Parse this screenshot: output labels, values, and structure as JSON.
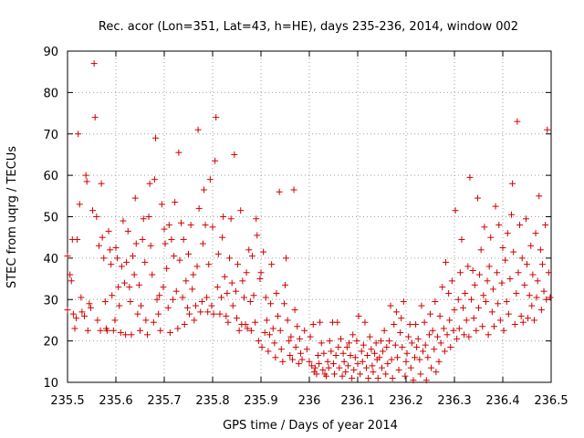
{
  "chart_data": {
    "type": "scatter",
    "title": "Rec. acor (Lon=351, Lat=43, h=HE), days 235-236, 2014, window 002",
    "xlabel": "GPS time / Days of year 2014",
    "ylabel": "STEC from uqrg / TECUs",
    "xlim": [
      235.5,
      236.5
    ],
    "ylim": [
      10,
      90
    ],
    "xticks": [
      "235.5",
      "235.6",
      "235.7",
      "235.8",
      "235.9",
      "236",
      "236.1",
      "236.2",
      "236.3",
      "236.4",
      "236.5"
    ],
    "yticks": [
      "10",
      "20",
      "30",
      "40",
      "50",
      "60",
      "70",
      "80",
      "90"
    ],
    "grid": true,
    "marker": "plus",
    "color": "#d00000",
    "points": [
      [
        235.5,
        40.5
      ],
      [
        235.5,
        27.5
      ],
      [
        235.505,
        36.0
      ],
      [
        235.508,
        34.5
      ],
      [
        235.51,
        44.5
      ],
      [
        235.512,
        26.5
      ],
      [
        235.515,
        23.0
      ],
      [
        235.518,
        25.5
      ],
      [
        235.52,
        44.5
      ],
      [
        235.522,
        70.0
      ],
      [
        235.525,
        53.0
      ],
      [
        235.528,
        30.5
      ],
      [
        235.53,
        27.0
      ],
      [
        235.535,
        26.0
      ],
      [
        235.538,
        60.0
      ],
      [
        235.54,
        58.5
      ],
      [
        235.542,
        22.5
      ],
      [
        235.545,
        29.0
      ],
      [
        235.548,
        28.0
      ],
      [
        235.552,
        51.5
      ],
      [
        235.555,
        87.0
      ],
      [
        235.557,
        74.0
      ],
      [
        235.56,
        50.0
      ],
      [
        235.562,
        25.0
      ],
      [
        235.565,
        43.0
      ],
      [
        235.568,
        22.5
      ],
      [
        235.57,
        58.0
      ],
      [
        235.572,
        45.0
      ],
      [
        235.575,
        40.0
      ],
      [
        235.578,
        29.5
      ],
      [
        235.58,
        23.0
      ],
      [
        235.582,
        22.5
      ],
      [
        235.585,
        46.5
      ],
      [
        235.588,
        42.0
      ],
      [
        235.59,
        38.5
      ],
      [
        235.592,
        31.0
      ],
      [
        235.595,
        22.5
      ],
      [
        235.598,
        25.0
      ],
      [
        235.6,
        42.5
      ],
      [
        235.603,
        40.0
      ],
      [
        235.605,
        33.0
      ],
      [
        235.607,
        28.5
      ],
      [
        235.61,
        22.0
      ],
      [
        235.612,
        38.0
      ],
      [
        235.615,
        49.0
      ],
      [
        235.618,
        34.0
      ],
      [
        235.62,
        21.5
      ],
      [
        235.622,
        39.0
      ],
      [
        235.625,
        46.5
      ],
      [
        235.628,
        33.0
      ],
      [
        235.63,
        29.5
      ],
      [
        235.632,
        21.5
      ],
      [
        235.635,
        40.5
      ],
      [
        235.638,
        36.0
      ],
      [
        235.64,
        54.5
      ],
      [
        235.642,
        43.5
      ],
      [
        235.645,
        26.5
      ],
      [
        235.648,
        33.5
      ],
      [
        235.65,
        22.5
      ],
      [
        235.652,
        28.5
      ],
      [
        235.655,
        44.5
      ],
      [
        235.657,
        49.5
      ],
      [
        235.66,
        39.0
      ],
      [
        235.662,
        25.0
      ],
      [
        235.665,
        21.5
      ],
      [
        235.668,
        50.0
      ],
      [
        235.67,
        58.0
      ],
      [
        235.672,
        43.0
      ],
      [
        235.675,
        36.0
      ],
      [
        235.678,
        24.5
      ],
      [
        235.68,
        59.0
      ],
      [
        235.682,
        69.0
      ],
      [
        235.685,
        30.0
      ],
      [
        235.688,
        26.5
      ],
      [
        235.69,
        31.0
      ],
      [
        235.692,
        22.5
      ],
      [
        235.695,
        53.0
      ],
      [
        235.698,
        33.0
      ],
      [
        235.7,
        47.0
      ],
      [
        235.702,
        43.5
      ],
      [
        235.705,
        37.5
      ],
      [
        235.708,
        28.0
      ],
      [
        235.71,
        48.0
      ],
      [
        235.712,
        22.0
      ],
      [
        235.715,
        44.5
      ],
      [
        235.718,
        30.0
      ],
      [
        235.72,
        40.5
      ],
      [
        235.722,
        53.5
      ],
      [
        235.725,
        32.0
      ],
      [
        235.728,
        23.0
      ],
      [
        235.73,
        65.5
      ],
      [
        235.732,
        39.5
      ],
      [
        235.735,
        48.5
      ],
      [
        235.738,
        30.5
      ],
      [
        235.74,
        44.5
      ],
      [
        235.742,
        24.0
      ],
      [
        235.745,
        34.5
      ],
      [
        235.748,
        28.0
      ],
      [
        235.75,
        41.0
      ],
      [
        235.752,
        26.5
      ],
      [
        235.755,
        48.0
      ],
      [
        235.758,
        32.5
      ],
      [
        235.76,
        36.0
      ],
      [
        235.762,
        25.0
      ],
      [
        235.765,
        28.5
      ],
      [
        235.768,
        38.0
      ],
      [
        235.77,
        71.0
      ],
      [
        235.772,
        52.0
      ],
      [
        235.775,
        27.0
      ],
      [
        235.778,
        29.5
      ],
      [
        235.78,
        43.5
      ],
      [
        235.782,
        56.5
      ],
      [
        235.785,
        48.0
      ],
      [
        235.788,
        30.5
      ],
      [
        235.79,
        27.0
      ],
      [
        235.792,
        38.5
      ],
      [
        235.795,
        59.0
      ],
      [
        235.798,
        28.5
      ],
      [
        235.8,
        47.5
      ],
      [
        235.802,
        26.5
      ],
      [
        235.805,
        63.5
      ],
      [
        235.807,
        74.0
      ],
      [
        235.81,
        33.0
      ],
      [
        235.812,
        41.0
      ],
      [
        235.815,
        26.5
      ],
      [
        235.818,
        30.5
      ],
      [
        235.82,
        45.0
      ],
      [
        235.822,
        50.0
      ],
      [
        235.825,
        35.5
      ],
      [
        235.828,
        26.0
      ],
      [
        235.83,
        31.5
      ],
      [
        235.832,
        24.5
      ],
      [
        235.835,
        40.0
      ],
      [
        235.838,
        49.5
      ],
      [
        235.84,
        34.0
      ],
      [
        235.842,
        28.5
      ],
      [
        235.845,
        65.0
      ],
      [
        235.848,
        32.0
      ],
      [
        235.85,
        25.5
      ],
      [
        235.852,
        38.5
      ],
      [
        235.855,
        22.5
      ],
      [
        235.858,
        51.5
      ],
      [
        235.86,
        24.0
      ],
      [
        235.862,
        34.5
      ],
      [
        235.865,
        30.5
      ],
      [
        235.868,
        24.0
      ],
      [
        235.87,
        36.5
      ],
      [
        235.872,
        23.0
      ],
      [
        235.875,
        42.0
      ],
      [
        235.878,
        29.5
      ],
      [
        235.88,
        22.5
      ],
      [
        235.882,
        40.5
      ],
      [
        235.885,
        31.0
      ],
      [
        235.888,
        24.5
      ],
      [
        235.89,
        49.5
      ],
      [
        235.892,
        45.5
      ],
      [
        235.895,
        20.0
      ],
      [
        235.898,
        35.0
      ],
      [
        235.9,
        36.5
      ],
      [
        235.902,
        18.5
      ],
      [
        235.905,
        41.5
      ],
      [
        235.908,
        22.0
      ],
      [
        235.91,
        30.5
      ],
      [
        235.912,
        25.0
      ],
      [
        235.915,
        17.5
      ],
      [
        235.918,
        21.5
      ],
      [
        235.92,
        29.0
      ],
      [
        235.922,
        38.5
      ],
      [
        235.925,
        23.0
      ],
      [
        235.928,
        19.5
      ],
      [
        235.93,
        16.0
      ],
      [
        235.932,
        31.5
      ],
      [
        235.935,
        26.0
      ],
      [
        235.938,
        56.0
      ],
      [
        235.94,
        22.5
      ],
      [
        235.942,
        18.0
      ],
      [
        235.945,
        15.0
      ],
      [
        235.948,
        29.0
      ],
      [
        235.95,
        33.5
      ],
      [
        235.952,
        40.0
      ],
      [
        235.955,
        25.0
      ],
      [
        235.958,
        20.0
      ],
      [
        235.96,
        16.5
      ],
      [
        235.962,
        21.0
      ],
      [
        235.965,
        15.5
      ],
      [
        235.968,
        56.5
      ],
      [
        235.97,
        27.5
      ],
      [
        235.972,
        18.5
      ],
      [
        235.975,
        23.5
      ],
      [
        235.978,
        14.5
      ],
      [
        235.98,
        20.5
      ],
      [
        235.982,
        17.0
      ],
      [
        235.985,
        15.5
      ],
      [
        235.99,
        22.5
      ],
      [
        235.995,
        18.0
      ],
      [
        236.0,
        15.0
      ],
      [
        236.002,
        21.0
      ],
      [
        236.005,
        14.0
      ],
      [
        236.008,
        24.0
      ],
      [
        236.01,
        12.5
      ],
      [
        236.012,
        13.5
      ],
      [
        236.015,
        12.0
      ],
      [
        236.018,
        16.5
      ],
      [
        236.02,
        14.5
      ],
      [
        236.022,
        24.5
      ],
      [
        236.025,
        19.5
      ],
      [
        236.028,
        13.0
      ],
      [
        236.03,
        17.0
      ],
      [
        236.032,
        12.0
      ],
      [
        236.035,
        11.5
      ],
      [
        236.038,
        15.0
      ],
      [
        236.04,
        13.5
      ],
      [
        236.042,
        20.0
      ],
      [
        236.045,
        17.5
      ],
      [
        236.048,
        24.5
      ],
      [
        236.05,
        14.5
      ],
      [
        236.052,
        12.0
      ],
      [
        236.055,
        16.5
      ],
      [
        236.058,
        24.5
      ],
      [
        236.06,
        18.5
      ],
      [
        236.062,
        13.5
      ],
      [
        236.065,
        20.5
      ],
      [
        236.068,
        11.5
      ],
      [
        236.07,
        17.0
      ],
      [
        236.072,
        15.0
      ],
      [
        236.075,
        12.5
      ],
      [
        236.078,
        18.5
      ],
      [
        236.08,
        14.0
      ],
      [
        236.082,
        19.5
      ],
      [
        236.085,
        16.5
      ],
      [
        236.088,
        11.0
      ],
      [
        236.09,
        21.5
      ],
      [
        236.092,
        13.0
      ],
      [
        236.095,
        16.0
      ],
      [
        236.098,
        20.0
      ],
      [
        236.1,
        14.5
      ],
      [
        236.102,
        26.0
      ],
      [
        236.105,
        12.0
      ],
      [
        236.108,
        17.5
      ],
      [
        236.11,
        15.0
      ],
      [
        236.112,
        19.0
      ],
      [
        236.115,
        24.5
      ],
      [
        236.118,
        13.5
      ],
      [
        236.12,
        16.5
      ],
      [
        236.122,
        11.0
      ],
      [
        236.125,
        21.0
      ],
      [
        236.128,
        18.0
      ],
      [
        236.13,
        14.0
      ],
      [
        236.132,
        12.5
      ],
      [
        236.135,
        17.0
      ],
      [
        236.138,
        19.5
      ],
      [
        236.14,
        15.5
      ],
      [
        236.142,
        11.0
      ],
      [
        236.145,
        16.0
      ],
      [
        236.148,
        20.0
      ],
      [
        236.15,
        13.5
      ],
      [
        236.152,
        17.5
      ],
      [
        236.155,
        22.5
      ],
      [
        236.158,
        12.0
      ],
      [
        236.16,
        18.5
      ],
      [
        236.162,
        14.5
      ],
      [
        236.165,
        20.0
      ],
      [
        236.168,
        28.5
      ],
      [
        236.17,
        15.5
      ],
      [
        236.172,
        11.0
      ],
      [
        236.175,
        24.0
      ],
      [
        236.178,
        19.0
      ],
      [
        236.18,
        27.0
      ],
      [
        236.182,
        16.0
      ],
      [
        236.185,
        13.0
      ],
      [
        236.188,
        22.0
      ],
      [
        236.19,
        25.5
      ],
      [
        236.192,
        18.5
      ],
      [
        236.195,
        29.5
      ],
      [
        236.198,
        11.5
      ],
      [
        236.2,
        15.0
      ],
      [
        236.202,
        17.0
      ],
      [
        236.205,
        21.0
      ],
      [
        236.208,
        24.0
      ],
      [
        236.21,
        13.5
      ],
      [
        236.212,
        19.5
      ],
      [
        236.215,
        10.5
      ],
      [
        236.218,
        16.0
      ],
      [
        236.22,
        24.0
      ],
      [
        236.222,
        18.5
      ],
      [
        236.225,
        20.5
      ],
      [
        236.228,
        15.5
      ],
      [
        236.23,
        12.0
      ],
      [
        236.232,
        28.5
      ],
      [
        236.235,
        17.5
      ],
      [
        236.238,
        24.5
      ],
      [
        236.24,
        19.0
      ],
      [
        236.242,
        10.5
      ],
      [
        236.245,
        16.0
      ],
      [
        236.248,
        21.5
      ],
      [
        236.25,
        26.5
      ],
      [
        236.252,
        13.5
      ],
      [
        236.255,
        22.5
      ],
      [
        236.258,
        18.0
      ],
      [
        236.26,
        29.5
      ],
      [
        236.262,
        12.5
      ],
      [
        236.265,
        21.0
      ],
      [
        236.268,
        15.0
      ],
      [
        236.27,
        26.0
      ],
      [
        236.272,
        19.5
      ],
      [
        236.275,
        33.0
      ],
      [
        236.278,
        23.0
      ],
      [
        236.28,
        17.5
      ],
      [
        236.282,
        39.0
      ],
      [
        236.285,
        21.5
      ],
      [
        236.288,
        31.5
      ],
      [
        236.29,
        25.0
      ],
      [
        236.292,
        18.5
      ],
      [
        236.295,
        34.5
      ],
      [
        236.298,
        22.5
      ],
      [
        236.3,
        27.5
      ],
      [
        236.302,
        51.5
      ],
      [
        236.305,
        20.5
      ],
      [
        236.308,
        30.0
      ],
      [
        236.31,
        23.0
      ],
      [
        236.312,
        36.5
      ],
      [
        236.315,
        44.5
      ],
      [
        236.318,
        28.0
      ],
      [
        236.32,
        21.5
      ],
      [
        236.322,
        31.5
      ],
      [
        236.325,
        25.0
      ],
      [
        236.328,
        38.0
      ],
      [
        236.33,
        21.0
      ],
      [
        236.332,
        59.5
      ],
      [
        236.335,
        30.0
      ],
      [
        236.338,
        37.0
      ],
      [
        236.34,
        25.5
      ],
      [
        236.342,
        33.5
      ],
      [
        236.345,
        22.5
      ],
      [
        236.348,
        54.5
      ],
      [
        236.35,
        28.0
      ],
      [
        236.352,
        36.0
      ],
      [
        236.355,
        42.0
      ],
      [
        236.358,
        23.5
      ],
      [
        236.36,
        31.0
      ],
      [
        236.362,
        47.5
      ],
      [
        236.365,
        29.5
      ],
      [
        236.368,
        34.5
      ],
      [
        236.37,
        21.5
      ],
      [
        236.372,
        38.0
      ],
      [
        236.375,
        45.0
      ],
      [
        236.378,
        27.0
      ],
      [
        236.38,
        32.5
      ],
      [
        236.382,
        23.5
      ],
      [
        236.385,
        52.5
      ],
      [
        236.388,
        36.5
      ],
      [
        236.39,
        29.0
      ],
      [
        236.392,
        48.0
      ],
      [
        236.395,
        25.0
      ],
      [
        236.398,
        34.0
      ],
      [
        236.4,
        42.5
      ],
      [
        236.402,
        22.5
      ],
      [
        236.405,
        39.5
      ],
      [
        236.408,
        29.5
      ],
      [
        236.41,
        46.0
      ],
      [
        236.412,
        26.5
      ],
      [
        236.415,
        35.0
      ],
      [
        236.418,
        50.5
      ],
      [
        236.42,
        58.0
      ],
      [
        236.422,
        41.5
      ],
      [
        236.425,
        24.0
      ],
      [
        236.428,
        31.5
      ],
      [
        236.43,
        73.0
      ],
      [
        236.432,
        36.5
      ],
      [
        236.435,
        48.0
      ],
      [
        236.438,
        26.0
      ],
      [
        236.44,
        40.0
      ],
      [
        236.442,
        24.5
      ],
      [
        236.445,
        33.5
      ],
      [
        236.448,
        49.5
      ],
      [
        236.45,
        38.5
      ],
      [
        236.452,
        25.5
      ],
      [
        236.455,
        31.0
      ],
      [
        236.458,
        43.0
      ],
      [
        236.46,
        28.5
      ],
      [
        236.462,
        36.0
      ],
      [
        236.465,
        25.0
      ],
      [
        236.468,
        46.0
      ],
      [
        236.47,
        30.5
      ],
      [
        236.472,
        34.5
      ],
      [
        236.475,
        55.0
      ],
      [
        236.478,
        42.0
      ],
      [
        236.48,
        27.5
      ],
      [
        236.482,
        38.5
      ],
      [
        236.485,
        32.0
      ],
      [
        236.488,
        48.0
      ],
      [
        236.49,
        30.0
      ],
      [
        236.492,
        71.0
      ],
      [
        236.495,
        36.5
      ],
      [
        236.498,
        30.5
      ]
    ]
  }
}
